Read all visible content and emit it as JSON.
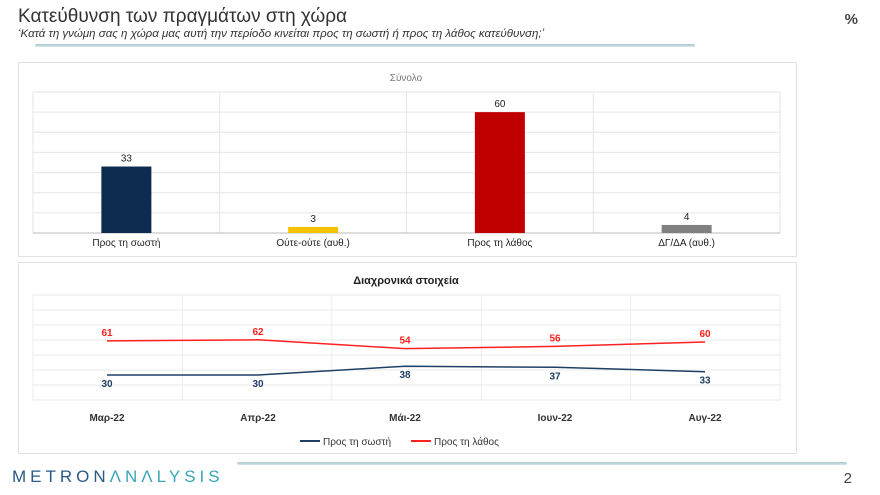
{
  "header": {
    "title": "Κατεύθυνση των πραγμάτων στη χώρα",
    "subtitle": "‘Κατά τη γνώμη σας η χώρα μας αυτή την περίοδο κινείται προς τη σωστή ή προς τη λάθος κατεύθυνση;’",
    "unit": "%"
  },
  "footer": {
    "logo_a": "METRON",
    "logo_b": "ΛNΛLYSIS",
    "page": "2"
  },
  "chart_data": [
    {
      "type": "bar",
      "title": "Σύνολο",
      "categories": [
        "Προς τη σωστή",
        "Ούτε-ούτε (αυθ.)",
        "Προς τη λάθος",
        "ΔΓ/ΔΑ (αυθ.)"
      ],
      "values": [
        33,
        3,
        60,
        4
      ],
      "colors": [
        "#0d2b50",
        "#f5c200",
        "#c00000",
        "#808080"
      ],
      "ylim": [
        0,
        70
      ],
      "grid": true
    },
    {
      "type": "line",
      "title": "Διαχρονικά στοιχεία",
      "categories": [
        "Μαρ-22",
        "Απρ-22",
        "Μάι-22",
        "Ιουν-22",
        "Αυγ-22"
      ],
      "series": [
        {
          "name": "Προς τη σωστή",
          "values": [
            30,
            30,
            38,
            37,
            33
          ],
          "color": "#203f66"
        },
        {
          "name": "Προς τη λάθος",
          "values": [
            61,
            62,
            54,
            56,
            60
          ],
          "color": "#ff2020"
        }
      ],
      "ylim": [
        0,
        100
      ],
      "grid": true,
      "legend": "bottom"
    }
  ]
}
